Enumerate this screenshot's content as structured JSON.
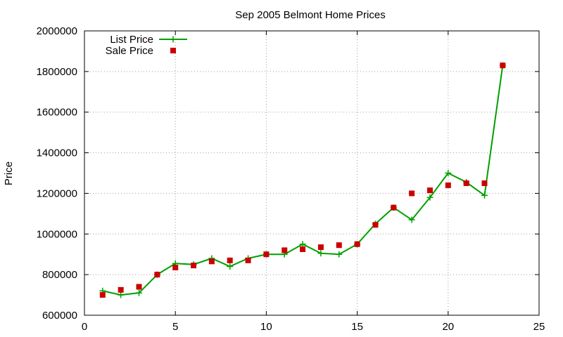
{
  "chart_data": {
    "type": "line",
    "title": "Sep 2005 Belmont Home Prices",
    "xlabel": "",
    "ylabel": "Price",
    "xlim": [
      0,
      25
    ],
    "ylim": [
      600000,
      2000000
    ],
    "xticks": [
      0,
      5,
      10,
      15,
      20,
      25
    ],
    "yticks": [
      600000,
      800000,
      1000000,
      1200000,
      1400000,
      1600000,
      1800000,
      2000000
    ],
    "xtick_labels": [
      "0",
      "5",
      "10",
      "15",
      "20",
      "25"
    ],
    "ytick_labels": [
      "600000",
      "800000",
      "1000000",
      "1200000",
      "1400000",
      "1600000",
      "1800000",
      "2000000"
    ],
    "grid": true,
    "legend_position": "top-left",
    "series": [
      {
        "name": "List Price",
        "style": "line-with-plus-markers",
        "color": "#00a000",
        "x": [
          1,
          2,
          3,
          4,
          5,
          6,
          7,
          8,
          9,
          10,
          11,
          12,
          13,
          14,
          15,
          16,
          17,
          18,
          19,
          20,
          21,
          22,
          23
        ],
        "y": [
          720000,
          700000,
          710000,
          800000,
          855000,
          850000,
          880000,
          840000,
          880000,
          900000,
          900000,
          950000,
          905000,
          900000,
          950000,
          1050000,
          1130000,
          1070000,
          1180000,
          1300000,
          1255000,
          1190000,
          1830000
        ]
      },
      {
        "name": "Sale Price",
        "style": "square-markers",
        "color": "#cc0000",
        "x": [
          1,
          2,
          3,
          4,
          5,
          6,
          7,
          8,
          9,
          10,
          11,
          12,
          13,
          14,
          15,
          16,
          17,
          18,
          19,
          20,
          21,
          22,
          23
        ],
        "y": [
          700000,
          725000,
          740000,
          800000,
          835000,
          845000,
          865000,
          870000,
          870000,
          900000,
          920000,
          925000,
          935000,
          945000,
          950000,
          1045000,
          1130000,
          1200000,
          1215000,
          1240000,
          1250000,
          1250000,
          1830000
        ]
      }
    ]
  }
}
